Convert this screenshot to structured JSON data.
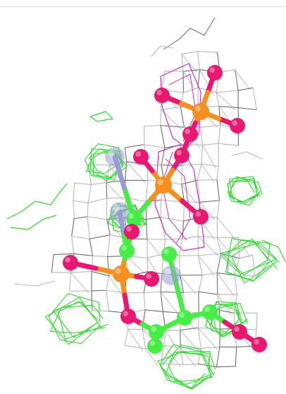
{
  "viewer": {
    "background_color": "#ffffff"
  },
  "rendering": {
    "colors": {
      "density_map_2fofc": "#b8b8b8",
      "density_map_dark": "#6e6e6e",
      "difference_map_positive": "#2ddc2d",
      "omit_map": "#cc33cc",
      "carbon_atoms": "#44ee44",
      "phosphorus_atoms": "#f5901f",
      "oxygen_atoms": "#e8176f",
      "nitrogen_atoms": "#9a9ad4"
    },
    "icons": {
      "molecule": "ball-and-stick-ligand",
      "mesh": "electron-density-mesh"
    }
  }
}
